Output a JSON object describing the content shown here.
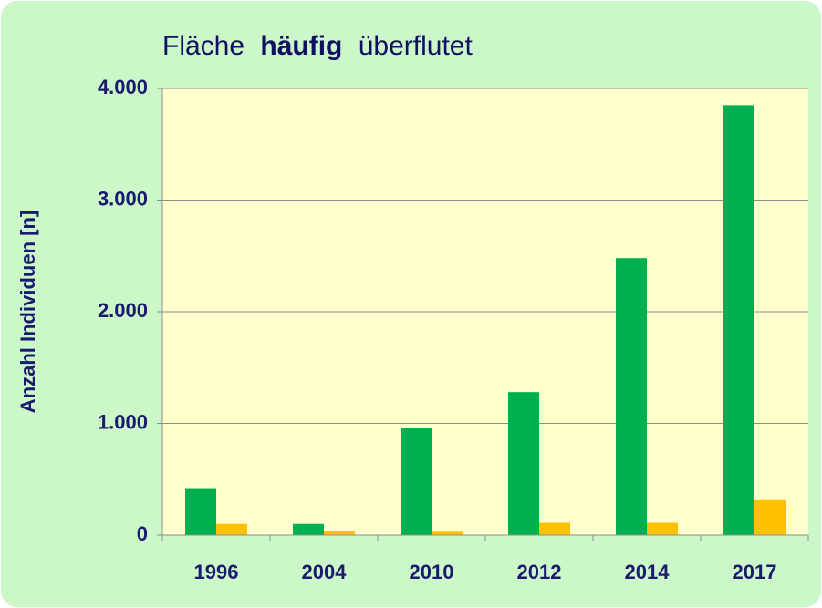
{
  "chart_data": {
    "type": "bar",
    "title": [
      "Fläche",
      "häufig",
      "überflutet"
    ],
    "y_label": "Anzahl Individuen [n]",
    "categories": [
      "1996",
      "2004",
      "2010",
      "2012",
      "2014",
      "2017"
    ],
    "series": [
      {
        "color": "#00b050",
        "values": [
          420,
          100,
          960,
          1280,
          2480,
          3850
        ]
      },
      {
        "color": "#ffc000",
        "values": [
          100,
          40,
          30,
          110,
          110,
          320
        ]
      }
    ],
    "ylim": [
      0,
      4000
    ],
    "yticks": [
      0,
      {
        "value": 1000,
        "label": "1.000"
      },
      {
        "value": 2000,
        "label": "2.000"
      },
      {
        "value": 3000,
        "label": "3.000"
      },
      {
        "value": 4000,
        "label": "4.000"
      }
    ],
    "grid": true
  }
}
